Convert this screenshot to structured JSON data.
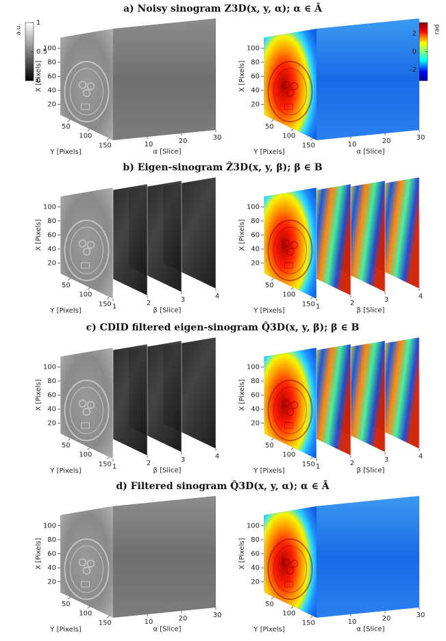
{
  "panels": [
    {
      "title": "a) Noisy sinogram Z3D(x, y, α);  α ∈ Ā",
      "mode": "volume",
      "depth_label": "α [Slice]",
      "depth_lim": [
        0,
        30
      ],
      "depth_ticks": [
        10,
        20,
        30
      ]
    },
    {
      "title": "b) Eigen-sinogram Ẑ3D(x, y, β);  β ∈ B",
      "mode": "slices",
      "depth_label": "β [Slice]",
      "depth_lim": [
        1,
        4
      ],
      "depth_ticks": [
        1,
        2,
        3,
        4
      ]
    },
    {
      "title": "c) CDID filtered eigen-sinogram Q̂3D(x, y, β);  β ∈ B",
      "mode": "slices",
      "depth_label": "β [Slice]",
      "depth_lim": [
        1,
        4
      ],
      "depth_ticks": [
        1,
        2,
        3,
        4
      ]
    },
    {
      "title": "d) Filtered sinogram Q̂3D(x, y, α);  α ∈ Ā",
      "mode": "volume",
      "depth_label": "α [Slice]",
      "depth_lim": [
        0,
        30
      ],
      "depth_ticks": [
        10,
        20,
        30
      ]
    }
  ],
  "x_axis": {
    "label": "X [Pixels]",
    "lim": [
      5,
      115
    ],
    "ticks": [
      20,
      40,
      60,
      80,
      100
    ]
  },
  "y_axis": {
    "label": "Y [Pixels]",
    "lim": [
      25,
      160
    ],
    "ticks": [
      50,
      100,
      150
    ]
  },
  "colorbars": [
    {
      "label": "a.u.",
      "lim": [
        0,
        1
      ],
      "ticks": [
        0,
        0.5,
        1
      ]
    },
    {
      "label": "rad",
      "lim": [
        -3.2,
        3.2
      ],
      "ticks": [
        -2,
        0,
        2
      ]
    }
  ]
}
